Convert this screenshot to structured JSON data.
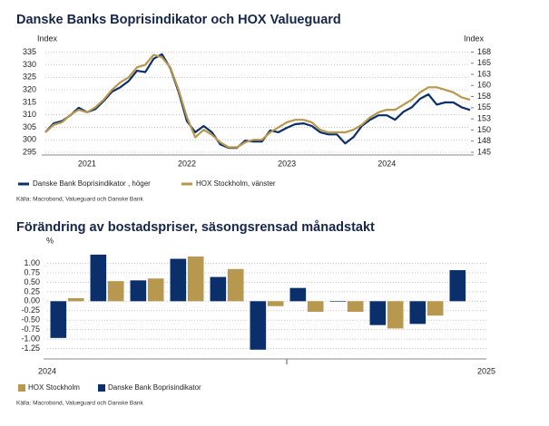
{
  "chart_data": [
    {
      "type": "line",
      "title": "Danske Banks Boprisindikator och HOX Valueguard",
      "ylabel": "Index",
      "y2label": "Index",
      "categories": [
        null,
        null,
        null,
        null,
        null,
        "2021",
        null,
        null,
        null,
        null,
        null,
        null,
        null,
        null,
        null,
        null,
        null,
        "2022",
        null,
        null,
        null,
        null,
        null,
        null,
        null,
        null,
        null,
        null,
        null,
        "2023",
        null,
        null,
        null,
        null,
        null,
        null,
        null,
        null,
        null,
        null,
        null,
        "2024",
        null,
        null,
        null,
        null,
        null,
        null,
        null,
        null,
        null,
        null
      ],
      "series": [
        {
          "name": "Danske Bank Boprisindikator , höger",
          "color": "#0b2f6b",
          "axis": "y2",
          "values": [
            149.5,
            151.5,
            152,
            153.3,
            155,
            154,
            154.7,
            156.5,
            158.6,
            159.6,
            161,
            163.3,
            163,
            166,
            167,
            163.9,
            158.6,
            152,
            149.5,
            150.9,
            149.5,
            146.8,
            146,
            146,
            147.6,
            147.4,
            147.4,
            149.9,
            149.5,
            150.5,
            151.3,
            151.5,
            150.9,
            149.5,
            149,
            149,
            147,
            148.4,
            150.9,
            152.3,
            153.3,
            153.3,
            152.3,
            154.1,
            155.1,
            157,
            158,
            155.7,
            156.2,
            156.2,
            155.1,
            154.5
          ]
        },
        {
          "name": "HOX Stockholm, vänster",
          "color": "#b8974e",
          "values": [
            303,
            306,
            307,
            310,
            312,
            311,
            313,
            316,
            320,
            323,
            325,
            329,
            330,
            334,
            333,
            329,
            320,
            309,
            301,
            304,
            302,
            299,
            297,
            297,
            299,
            300,
            300,
            303,
            305,
            307,
            308,
            308,
            307,
            304,
            303,
            303,
            303,
            304,
            306,
            309,
            311,
            312,
            312,
            314,
            316,
            319,
            321,
            321,
            320,
            319,
            317,
            316
          ]
        }
      ],
      "ylim": [
        295,
        336
      ],
      "yticks": [
        295,
        300,
        305,
        310,
        315,
        320,
        325,
        330,
        335
      ],
      "y2lim": [
        145,
        168
      ],
      "y2ticks": [
        145,
        {
          "value": 147.5,
          "label": "148"
        },
        150,
        {
          "value": 152.5,
          "label": "153"
        },
        155,
        {
          "value": 157.5,
          "label": "158"
        },
        160,
        {
          "value": 162.5,
          "label": "163"
        },
        165,
        {
          "value": 167.5,
          "label": "168"
        }
      ],
      "grid": true,
      "legend": "bottom",
      "source": "Källa: Macrobond, Valueguard och Danske Bank"
    },
    {
      "type": "bar",
      "title": "Förändring av bostadspriser, säsongsrensad månadstakt",
      "ylabel": "%",
      "categories": [
        null,
        null,
        null,
        null,
        null,
        null,
        null,
        null,
        null,
        null,
        null
      ],
      "xlabels": [
        "2024",
        "2025"
      ],
      "series": [
        {
          "name": "Danske Bank Boprisindikator",
          "color": "#0b2f6b",
          "values": [
            -0.97,
            1.23,
            0.55,
            1.12,
            0.64,
            -1.28,
            0.35,
            0.0,
            -0.63,
            -0.6,
            0.82
          ]
        },
        {
          "name": "HOX Stockholm",
          "color": "#b8974e",
          "values": [
            0.08,
            0.53,
            0.6,
            1.18,
            0.85,
            -0.13,
            -0.28,
            -0.28,
            -0.72,
            -0.38,
            null
          ]
        }
      ],
      "ylim": [
        -1.5,
        1.3
      ],
      "yticks": [
        {
          "value": 1,
          "label": "1.00"
        },
        {
          "value": 0.75,
          "label": "0.75"
        },
        {
          "value": 0.5,
          "label": "0.50"
        },
        {
          "value": 0.25,
          "label": "0.25"
        },
        {
          "value": 0,
          "label": "0.00"
        },
        {
          "value": -0.25,
          "label": "-0.25"
        },
        {
          "value": -0.5,
          "label": "-0.50"
        },
        {
          "value": -0.75,
          "label": "-0.75"
        },
        {
          "value": -1,
          "label": "-1.00"
        },
        {
          "value": -1.25,
          "label": "-1.25"
        }
      ],
      "grid": true,
      "legend": "bottom",
      "source": "Källa: Macrobond, Valueguard och Danske Bank"
    }
  ]
}
